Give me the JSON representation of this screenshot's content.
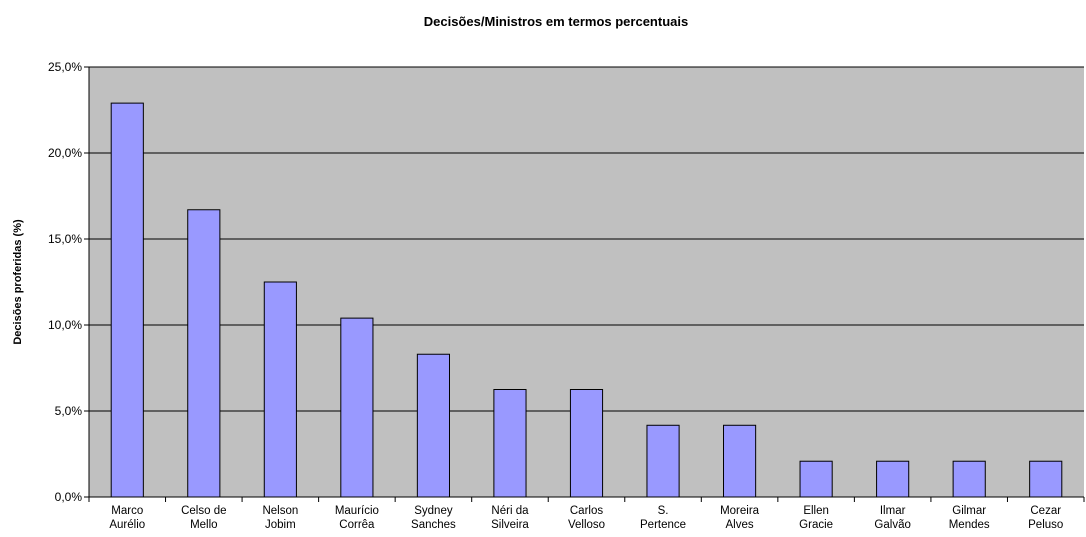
{
  "chart_data": {
    "type": "bar",
    "title": "Decisões/Ministros em termos percentuais",
    "y_label": "Decisões proferidas (%)",
    "categories": [
      [
        "Marco",
        "Aurélio"
      ],
      [
        "Celso de",
        "Mello"
      ],
      [
        "Nelson",
        "Jobim"
      ],
      [
        "Maurício",
        "Corrêa"
      ],
      [
        "Sydney",
        "Sanches"
      ],
      [
        "Néri da",
        "Silveira"
      ],
      [
        "Carlos",
        "Velloso"
      ],
      [
        "S.",
        "Pertence"
      ],
      [
        "Moreira",
        "Alves"
      ],
      [
        "Ellen",
        "Gracie"
      ],
      [
        "Ilmar",
        "Galvão"
      ],
      [
        "Gilmar",
        "Mendes"
      ],
      [
        "Cezar",
        "Peluso"
      ]
    ],
    "values": [
      22.9,
      16.7,
      12.5,
      10.4,
      8.3,
      6.25,
      6.25,
      4.17,
      4.17,
      2.08,
      2.08,
      2.08,
      2.08
    ],
    "color": "#9999ff",
    "ylim": [
      0,
      25
    ],
    "yticks": [
      {
        "value": 0,
        "label": "0,0%"
      },
      {
        "value": 5,
        "label": "5,0%"
      },
      {
        "value": 10,
        "label": "10,0%"
      },
      {
        "value": 15,
        "label": "15,0%"
      },
      {
        "value": 20,
        "label": "20,0%"
      },
      {
        "value": 25,
        "label": "25,0%"
      }
    ],
    "grid": true
  }
}
